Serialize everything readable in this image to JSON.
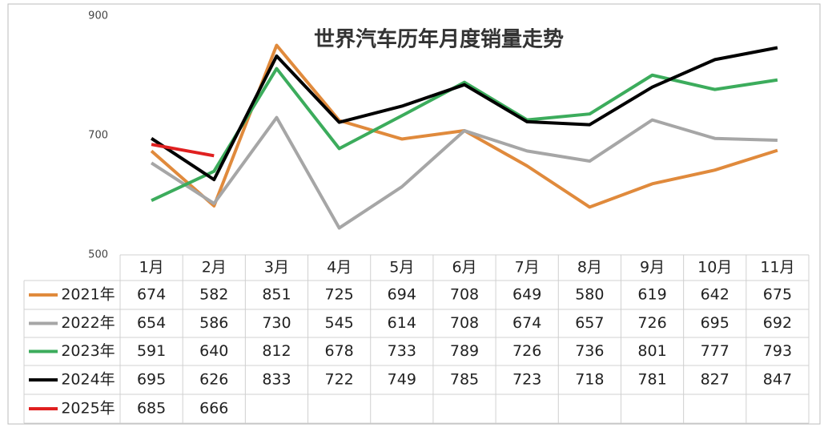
{
  "chart_data": {
    "type": "line",
    "title": "世界汽车历年月度销量走势",
    "categories": [
      "1月",
      "2月",
      "3月",
      "4月",
      "5月",
      "6月",
      "7月",
      "8月",
      "9月",
      "10月",
      "11月"
    ],
    "ylim": [
      500,
      900
    ],
    "yticks": [
      500,
      700,
      900
    ],
    "series": [
      {
        "name": "2021年",
        "color": "#e08a3c",
        "values": [
          674,
          582,
          851,
          725,
          694,
          708,
          649,
          580,
          619,
          642,
          675
        ]
      },
      {
        "name": "2022年",
        "color": "#a6a6a6",
        "values": [
          654,
          586,
          730,
          545,
          614,
          708,
          674,
          657,
          726,
          695,
          692
        ]
      },
      {
        "name": "2023年",
        "color": "#3cac5c",
        "values": [
          591,
          640,
          812,
          678,
          733,
          789,
          726,
          736,
          801,
          777,
          793
        ]
      },
      {
        "name": "2024年",
        "color": "#000000",
        "values": [
          695,
          626,
          833,
          722,
          749,
          785,
          723,
          718,
          781,
          827,
          847
        ]
      },
      {
        "name": "2025年",
        "color": "#e02020",
        "values": [
          685,
          666,
          null,
          null,
          null,
          null,
          null,
          null,
          null,
          null,
          null
        ]
      }
    ]
  }
}
